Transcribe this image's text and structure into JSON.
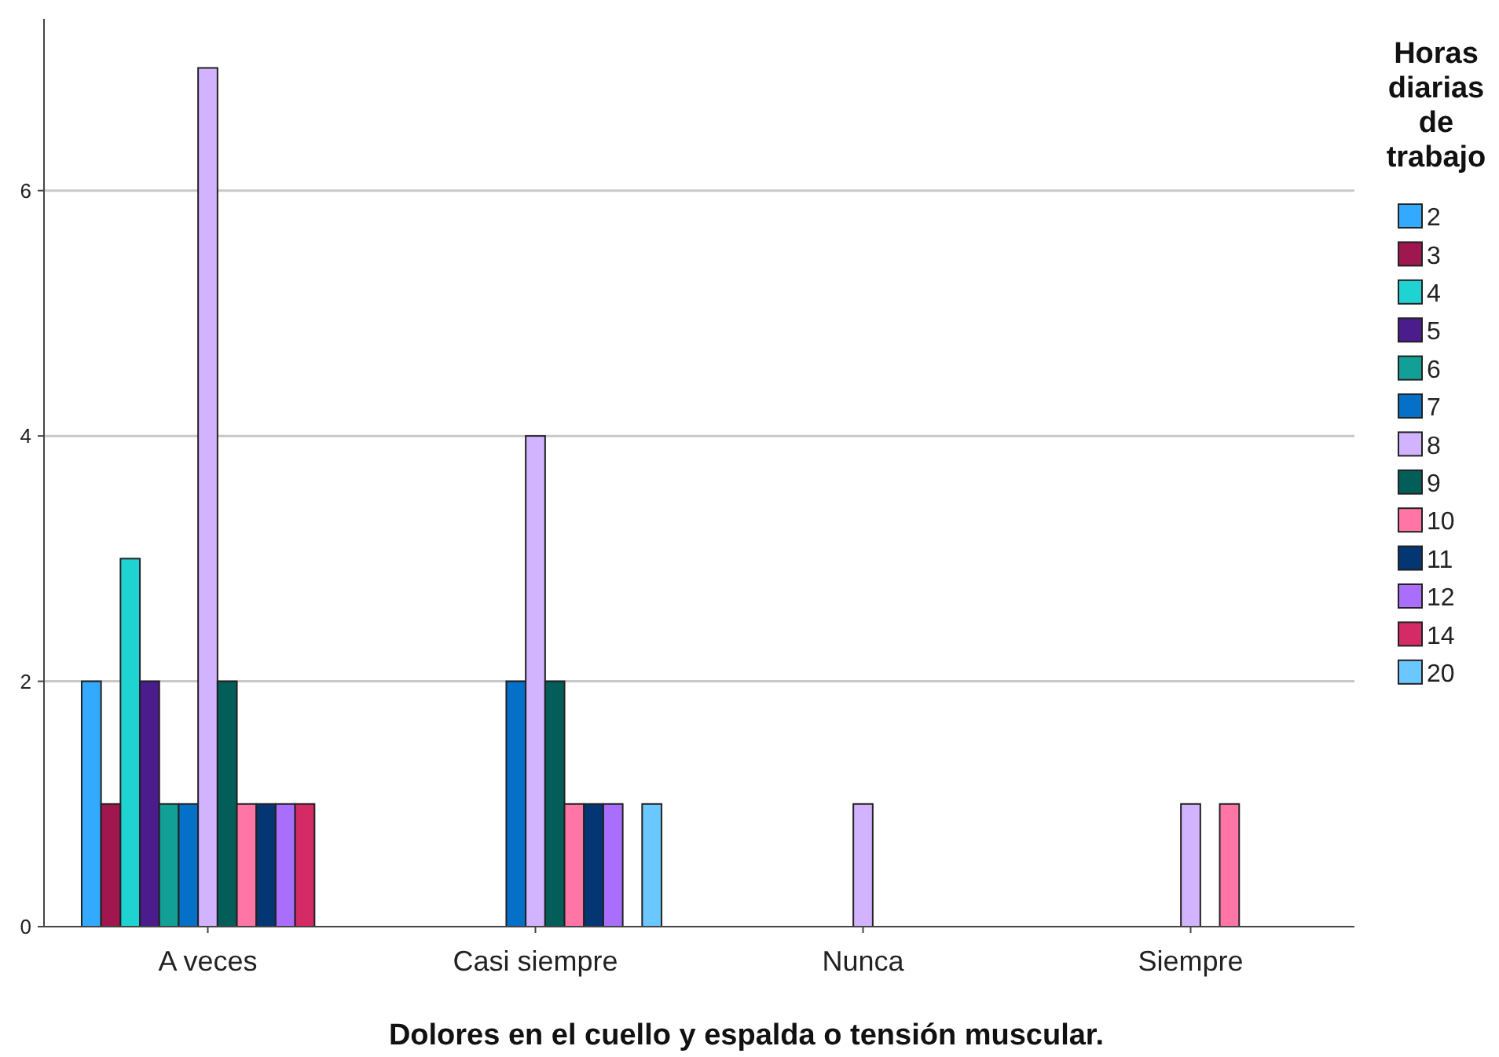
{
  "chart_data": {
    "type": "bar",
    "xlabel": "Dolores en el cuello y espalda o tensión muscular.",
    "legend_title": "Horas diarias de trabajo",
    "categories": [
      "A veces",
      "Casi siempre",
      "Nunca",
      "Siempre"
    ],
    "series": [
      {
        "name": "2",
        "color": "#33aaff",
        "values": [
          2,
          null,
          null,
          null
        ]
      },
      {
        "name": "3",
        "color": "#a0174f",
        "values": [
          1,
          null,
          null,
          null
        ]
      },
      {
        "name": "4",
        "color": "#20d3d3",
        "values": [
          3,
          null,
          null,
          null
        ]
      },
      {
        "name": "5",
        "color": "#4a1c8c",
        "values": [
          2,
          null,
          null,
          null
        ]
      },
      {
        "name": "6",
        "color": "#12a096",
        "values": [
          1,
          null,
          null,
          null
        ]
      },
      {
        "name": "7",
        "color": "#0570c8",
        "values": [
          1,
          2,
          null,
          null
        ]
      },
      {
        "name": "8",
        "color": "#d1b3ff",
        "values": [
          7,
          4,
          1,
          1
        ]
      },
      {
        "name": "9",
        "color": "#035e5a",
        "values": [
          2,
          2,
          null,
          null
        ]
      },
      {
        "name": "10",
        "color": "#ff76a6",
        "values": [
          1,
          1,
          null,
          1
        ]
      },
      {
        "name": "11",
        "color": "#033672",
        "values": [
          1,
          1,
          null,
          null
        ]
      },
      {
        "name": "12",
        "color": "#a96ffc",
        "values": [
          1,
          1,
          null,
          null
        ]
      },
      {
        "name": "14",
        "color": "#d42a66",
        "values": [
          1,
          null,
          null,
          null
        ]
      },
      {
        "name": "20",
        "color": "#6bc7ff",
        "values": [
          null,
          1,
          null,
          null
        ]
      }
    ],
    "ylim": [
      0,
      7.4
    ],
    "yticks": [
      0,
      2,
      4,
      6
    ],
    "grid": "y",
    "legend": "right"
  }
}
